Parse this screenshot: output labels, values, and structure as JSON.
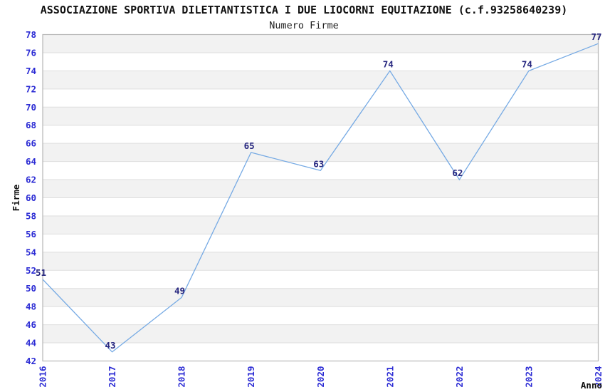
{
  "chart_data": {
    "type": "line",
    "title": "ASSOCIAZIONE SPORTIVA DILETTANTISTICA I DUE LIOCORNI EQUITAZIONE (c.f.93258640239)",
    "subtitle": "Numero Firme",
    "xlabel": "Anno",
    "ylabel": "Firme",
    "categories": [
      "2016",
      "2017",
      "2018",
      "2019",
      "2020",
      "2021",
      "2022",
      "2023",
      "2024"
    ],
    "values": [
      51,
      43,
      49,
      65,
      63,
      74,
      62,
      74,
      77
    ],
    "ylim": [
      42,
      78
    ],
    "ytick_step": 2,
    "grid": true,
    "banded_background": true,
    "legend": "none",
    "colors": {
      "line": "#76aae4",
      "data_label": "#26267f",
      "tick_label": "#2b2bd4",
      "band": "#f2f2f2",
      "band_alt": "#ffffff",
      "gridline": "#dedede",
      "plot_border": "#b6b6b6",
      "title": "#111111",
      "subtitle": "#222222",
      "axis_title": "#111111",
      "background": "#ffffff"
    }
  }
}
